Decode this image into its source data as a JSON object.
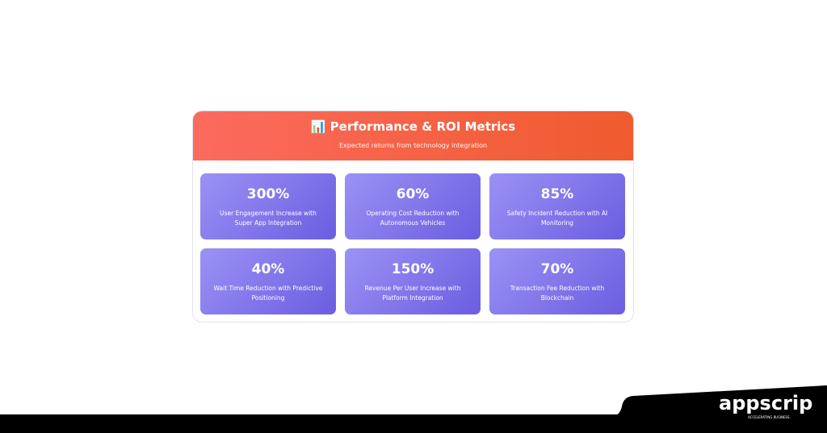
{
  "header": {
    "icon": "bar-chart-icon",
    "title": "Performance & ROI Metrics",
    "subtitle": "Expected returns from technology integration"
  },
  "metrics": [
    {
      "value": "300%",
      "label": "User Engagement Increase with Super App Integration"
    },
    {
      "value": "60%",
      "label": "Operating Cost Reduction with Autonomous Vehicles"
    },
    {
      "value": "85%",
      "label": "Safety Incident Reduction with AI Monitoring"
    },
    {
      "value": "40%",
      "label": "Wait Time Reduction with Predictive Positioning"
    },
    {
      "value": "150%",
      "label": "Revenue Per User Increase with Platform Integration"
    },
    {
      "value": "70%",
      "label": "Transaction Fee Reduction with Blockchain"
    }
  ],
  "brand": {
    "name": "appscrip",
    "tagline": "ACCELERATING BUSINESS"
  }
}
